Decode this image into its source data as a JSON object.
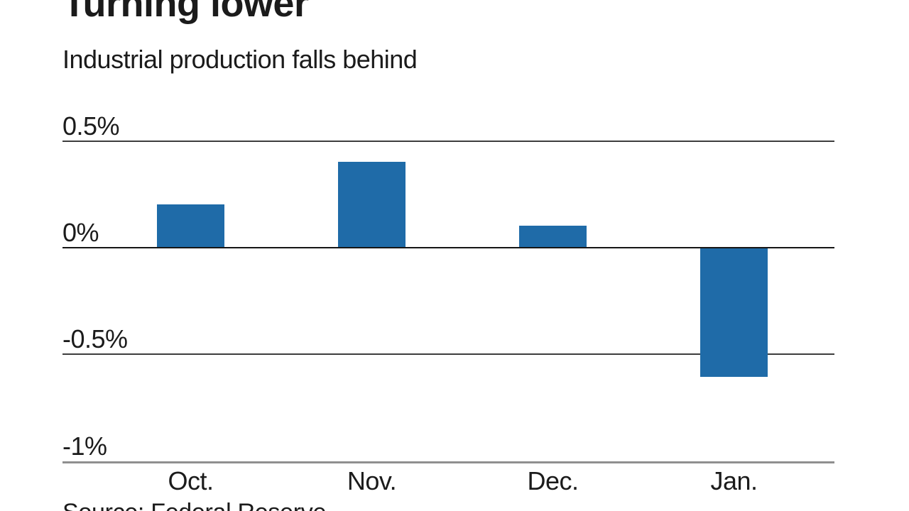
{
  "chart_data": {
    "type": "bar",
    "title": "Turning lower",
    "subtitle": "Industrial production falls behind",
    "source": "Source: Federal Reserve",
    "categories": [
      "Oct.",
      "Nov.",
      "Dec.",
      "Jan."
    ],
    "values": [
      0.2,
      0.4,
      0.1,
      -0.6
    ],
    "unit": "%",
    "xlabel": "",
    "ylabel": "",
    "ylim": [
      -1,
      0.5
    ],
    "yticks": [
      0.5,
      0,
      -0.5,
      -1
    ],
    "ytick_labels": [
      "0.5%",
      "0%",
      "-0.5%",
      "-1%"
    ],
    "bar_color": "#1f6ba8",
    "grid": "horizontal gridlines at each y tick, zero line emphasized, bottom axis line gray",
    "legend": "none"
  },
  "colors": {
    "background": "#ffffff",
    "text": "#1b1b1b",
    "bar": "#1f6ba8",
    "grid_minor": "#3d3d3d",
    "grid_zero": "#161616",
    "axis_bottom": "#8f8f8f"
  }
}
